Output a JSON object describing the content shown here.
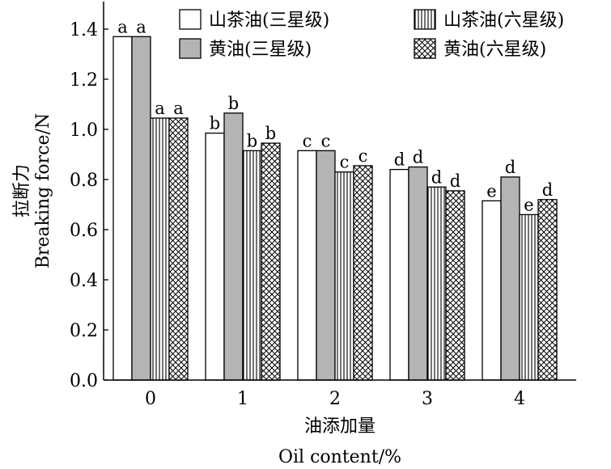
{
  "chart_data": {
    "type": "bar",
    "xlabel_cn": "油添加量",
    "xlabel_en": "Oil content/%",
    "ylabel_cn": "拉断力",
    "ylabel_en": "Breaking force/N",
    "categories": [
      "0",
      "1",
      "2",
      "3",
      "4"
    ],
    "ylim": [
      0,
      1.5
    ],
    "yticks": [
      "0.0",
      "0.2",
      "0.4",
      "0.6",
      "0.8",
      "1.0",
      "1.2",
      "1.4"
    ],
    "legend_position": "top-right",
    "grid": false,
    "series": [
      {
        "name": "山茶油(三星级)",
        "pattern": "white",
        "values": [
          1.37,
          0.985,
          0.915,
          0.84,
          0.715
        ],
        "letters": [
          "a",
          "b",
          "c",
          "d",
          "e"
        ]
      },
      {
        "name": "黄油(三星级)",
        "pattern": "gray",
        "values": [
          1.37,
          1.065,
          0.915,
          0.85,
          0.81
        ],
        "letters": [
          "a",
          "b",
          "c",
          "d",
          "d"
        ]
      },
      {
        "name": "山茶油(六星级)",
        "pattern": "vertical-lines",
        "values": [
          1.045,
          0.915,
          0.83,
          0.77,
          0.66
        ],
        "letters": [
          "a",
          "b",
          "c",
          "d",
          "e"
        ]
      },
      {
        "name": "黄油(六星级)",
        "pattern": "crosshatch",
        "values": [
          1.045,
          0.945,
          0.855,
          0.755,
          0.72
        ],
        "letters": [
          "a",
          "b",
          "c",
          "d",
          "d"
        ]
      }
    ]
  },
  "colors": {
    "gray_fill": "#b4b4b4",
    "outline": "#000000",
    "background": "#ffffff"
  }
}
